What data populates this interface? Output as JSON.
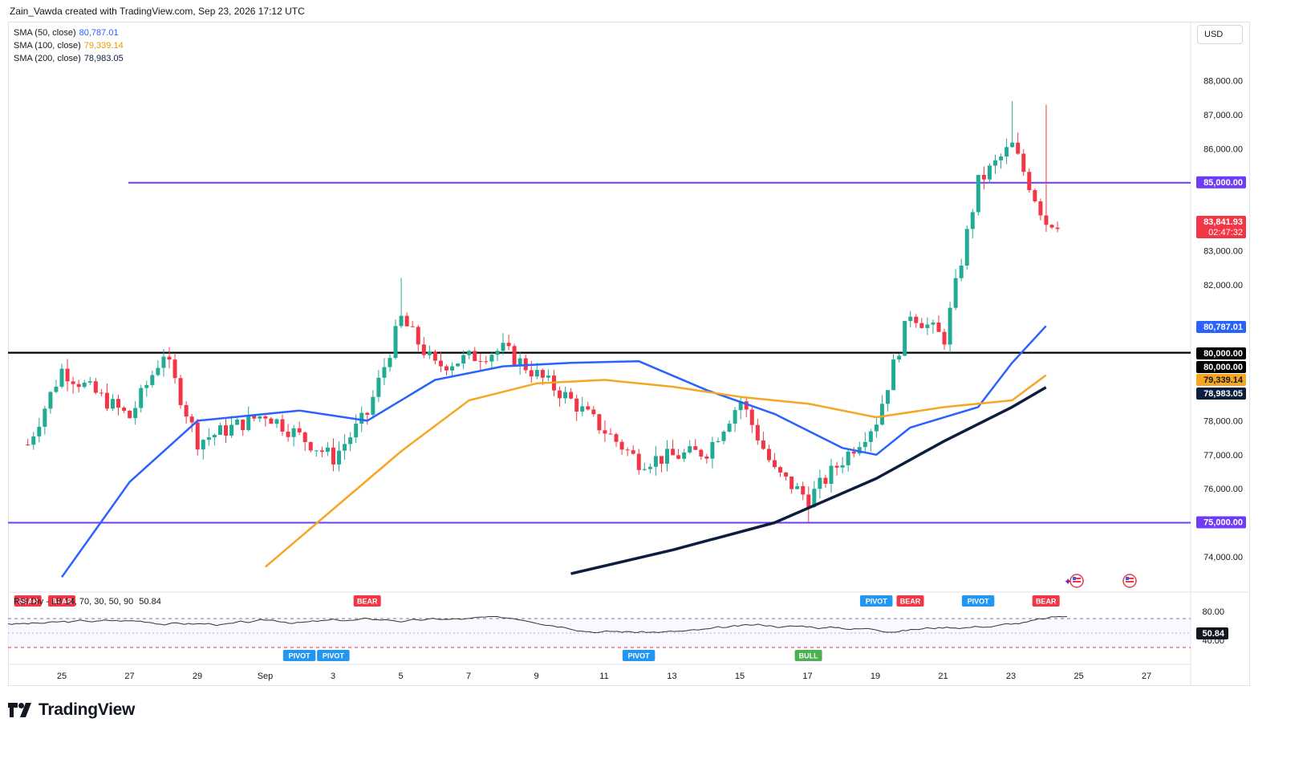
{
  "header": {
    "credit": "Zain_Vawda created with TradingView.com, Sep 23, 2026 17:12 UTC"
  },
  "currency_button": "USD",
  "legend": {
    "sma50": {
      "label": "SMA (50, close)",
      "value": "80,787.01",
      "color": "#2962ff"
    },
    "sma100": {
      "label": "SMA (100, close)",
      "value": "79,339.14",
      "color": "#f5a623"
    },
    "sma200": {
      "label": "SMA (200, close)",
      "value": "78,983.05",
      "color": "#0c1e3e"
    }
  },
  "rsi_legend": {
    "label": "RSI Div - LB",
    "params": "14, 70, 30, 50, 90",
    "value": "50.84"
  },
  "brand": "TradingView",
  "colors": {
    "up": "#22ab94",
    "down": "#f23645",
    "level_line": "#6e3cf5",
    "black_line": "#000000"
  },
  "chart_data": {
    "type": "candlestick",
    "x_labels": [
      "25",
      "27",
      "29",
      "Sep",
      "3",
      "5",
      "7",
      "9",
      "11",
      "13",
      "15",
      "17",
      "19",
      "21",
      "23",
      "25",
      "27"
    ],
    "y_ticks": [
      74000,
      76000,
      77000,
      78000,
      82000,
      83000,
      86000,
      87000,
      88000
    ],
    "y_tick_labels": [
      "74,000.00",
      "76,000.00",
      "77,000.00",
      "78,000.00",
      "82,000.00",
      "83,000.00",
      "86,000.00",
      "87,000.00",
      "88,000.00"
    ],
    "horizontal_levels": [
      {
        "value": 85000,
        "label": "85,000.00",
        "color": "#6e3cf5"
      },
      {
        "value": 80000,
        "label": "80,000.00",
        "color": "#000000"
      },
      {
        "value": 75000,
        "label": "75,000.00",
        "color": "#6e3cf5"
      }
    ],
    "price_tags": [
      {
        "label": "83,841.93",
        "sublabel": "02:47:32",
        "value": 83841.93,
        "color": "#f23645"
      },
      {
        "label": "80,787.01",
        "value": 80787.01,
        "color": "#2962ff"
      },
      {
        "label": "80,000.00",
        "value": 80000,
        "color": "#000000"
      },
      {
        "label": "80,000.00",
        "value": 79620,
        "color": "#000000"
      },
      {
        "label": "79,339.14",
        "value": 79339.14,
        "color": "#f5a623"
      },
      {
        "label": "78,983.05",
        "value": 78983.05,
        "color": "#0c1e3e"
      }
    ],
    "ohlc_key_points": [
      {
        "date": "Aug 24",
        "close": 77300
      },
      {
        "date": "Aug 25",
        "close": 79500
      },
      {
        "date": "Aug 27",
        "close": 78100
      },
      {
        "date": "Aug 28",
        "close": 80000
      },
      {
        "date": "Aug 29",
        "close": 77400
      },
      {
        "date": "Aug 31",
        "close": 78200
      },
      {
        "date": "Sep 2",
        "close": 76900
      },
      {
        "date": "Sep 3",
        "close": 78200
      },
      {
        "date": "Sep 4",
        "high": 82200,
        "close": 81000
      },
      {
        "date": "Sep 5",
        "close": 79600
      },
      {
        "date": "Sep 7",
        "close": 80100
      },
      {
        "date": "Sep 9",
        "close": 78600
      },
      {
        "date": "Sep 11",
        "close": 76800
      },
      {
        "date": "Sep 13",
        "close": 77100
      },
      {
        "date": "Sep 14",
        "close": 78600
      },
      {
        "date": "Sep 15",
        "close": 76500
      },
      {
        "date": "Sep 16",
        "low": 75000,
        "close": 75700
      },
      {
        "date": "Sep 18",
        "close": 78000
      },
      {
        "date": "Sep 19",
        "close": 81200
      },
      {
        "date": "Sep 20",
        "close": 80400
      },
      {
        "date": "Sep 21",
        "close": 85000
      },
      {
        "date": "Sep 22",
        "high": 87400,
        "close": 86100
      },
      {
        "date": "Sep 23",
        "high": 87300,
        "close": 83841.93
      }
    ],
    "series": [
      {
        "name": "SMA (50, close)",
        "color": "#2962ff",
        "points": [
          [
            "Aug 25",
            73400
          ],
          [
            "Aug 27",
            76200
          ],
          [
            "Aug 29",
            78000
          ],
          [
            "Sep 1",
            78300
          ],
          [
            "Sep 3",
            78000
          ],
          [
            "Sep 5",
            79200
          ],
          [
            "Sep 7",
            79600
          ],
          [
            "Sep 9",
            79700
          ],
          [
            "Sep 11",
            79750
          ],
          [
            "Sep 13",
            78900
          ],
          [
            "Sep 15",
            78200
          ],
          [
            "Sep 17",
            77200
          ],
          [
            "Sep 18",
            77000
          ],
          [
            "Sep 19",
            77800
          ],
          [
            "Sep 21",
            78400
          ],
          [
            "Sep 22",
            79700
          ],
          [
            "Sep 23",
            80787.01
          ]
        ]
      },
      {
        "name": "SMA (100, close)",
        "color": "#f5a623",
        "points": [
          [
            "Aug 31",
            73700
          ],
          [
            "Sep 2",
            75400
          ],
          [
            "Sep 4",
            77100
          ],
          [
            "Sep 6",
            78600
          ],
          [
            "Sep 8",
            79100
          ],
          [
            "Sep 10",
            79200
          ],
          [
            "Sep 12",
            79000
          ],
          [
            "Sep 14",
            78700
          ],
          [
            "Sep 16",
            78500
          ],
          [
            "Sep 18",
            78100
          ],
          [
            "Sep 20",
            78400
          ],
          [
            "Sep 22",
            78600
          ],
          [
            "Sep 23",
            79339.14
          ]
        ]
      },
      {
        "name": "SMA (200, close)",
        "color": "#0c1e3e",
        "points": [
          [
            "Sep 9",
            73500
          ],
          [
            "Sep 12",
            74200
          ],
          [
            "Sep 15",
            75000
          ],
          [
            "Sep 18",
            76300
          ],
          [
            "Sep 20",
            77400
          ],
          [
            "Sep 22",
            78400
          ],
          [
            "Sep 23",
            78983.05
          ]
        ]
      }
    ],
    "rsi": {
      "ticks": [
        "80.00",
        "40.00"
      ],
      "current": "50.84",
      "signals": [
        {
          "label": "BEAR",
          "date": "Aug 24",
          "color": "#f23645"
        },
        {
          "label": "BEAR",
          "date": "Aug 25",
          "color": "#f23645"
        },
        {
          "label": "PIVOT",
          "date": "Sep 1",
          "color": "#2196f3"
        },
        {
          "label": "PIVOT",
          "date": "Sep 2",
          "color": "#2196f3"
        },
        {
          "label": "BEAR",
          "date": "Sep 3",
          "color": "#f23645"
        },
        {
          "label": "PIVOT",
          "date": "Sep 11",
          "color": "#2196f3"
        },
        {
          "label": "BULL",
          "date": "Sep 16",
          "color": "#4caf50"
        },
        {
          "label": "PIVOT",
          "date": "Sep 18",
          "color": "#2196f3"
        },
        {
          "label": "BEAR",
          "date": "Sep 19",
          "color": "#f23645"
        },
        {
          "label": "PIVOT",
          "date": "Sep 21",
          "color": "#2196f3"
        },
        {
          "label": "BEAR",
          "date": "Sep 23",
          "color": "#f23645"
        }
      ]
    }
  }
}
